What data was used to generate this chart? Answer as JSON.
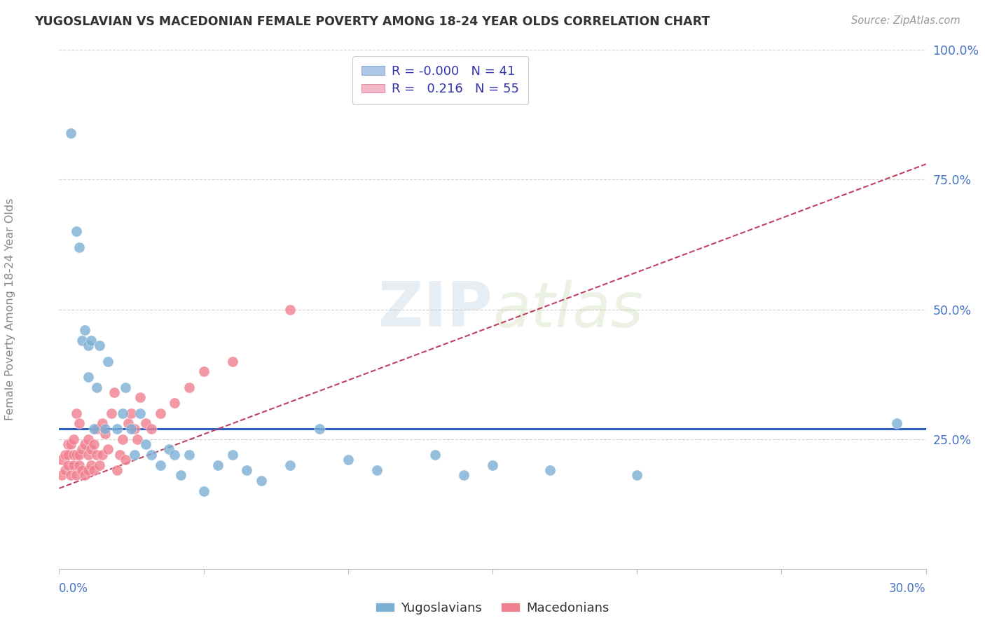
{
  "title": "YUGOSLAVIAN VS MACEDONIAN FEMALE POVERTY AMONG 18-24 YEAR OLDS CORRELATION CHART",
  "source": "Source: ZipAtlas.com",
  "ylabel": "Female Poverty Among 18-24 Year Olds",
  "legend_entries": [
    {
      "label_r": "-0.000",
      "label_n": "41",
      "facecolor": "#aec6e8",
      "edgecolor": "#8aafd0"
    },
    {
      "label_r": "0.216",
      "label_n": "55",
      "facecolor": "#f4b8c8",
      "edgecolor": "#e090a8"
    }
  ],
  "yugoslavian_color": "#7bafd4",
  "macedonian_color": "#f08090",
  "trend_yugo_color": "#3060c0",
  "trend_mace_color": "#c04060",
  "background_color": "#ffffff",
  "xlim": [
    0.0,
    0.3
  ],
  "ylim": [
    0.0,
    1.0
  ],
  "ytick_vals": [
    0.0,
    0.25,
    0.5,
    0.75,
    1.0
  ],
  "ytick_labels": [
    "",
    "25.0%",
    "50.0%",
    "75.0%",
    "100.0%"
  ],
  "yugo_x": [
    0.004,
    0.006,
    0.007,
    0.008,
    0.009,
    0.01,
    0.01,
    0.011,
    0.012,
    0.013,
    0.014,
    0.016,
    0.017,
    0.02,
    0.022,
    0.023,
    0.025,
    0.026,
    0.028,
    0.03,
    0.032,
    0.035,
    0.038,
    0.04,
    0.042,
    0.045,
    0.05,
    0.055,
    0.06,
    0.065,
    0.07,
    0.08,
    0.09,
    0.1,
    0.11,
    0.13,
    0.14,
    0.15,
    0.17,
    0.2,
    0.29
  ],
  "yugo_y": [
    0.84,
    0.65,
    0.62,
    0.44,
    0.46,
    0.43,
    0.37,
    0.44,
    0.27,
    0.35,
    0.43,
    0.27,
    0.4,
    0.27,
    0.3,
    0.35,
    0.27,
    0.22,
    0.3,
    0.24,
    0.22,
    0.2,
    0.23,
    0.22,
    0.18,
    0.22,
    0.15,
    0.2,
    0.22,
    0.19,
    0.17,
    0.2,
    0.27,
    0.21,
    0.19,
    0.22,
    0.18,
    0.2,
    0.19,
    0.18,
    0.28
  ],
  "mace_x": [
    0.001,
    0.001,
    0.002,
    0.002,
    0.003,
    0.003,
    0.003,
    0.004,
    0.004,
    0.005,
    0.005,
    0.005,
    0.006,
    0.006,
    0.006,
    0.007,
    0.007,
    0.007,
    0.008,
    0.008,
    0.009,
    0.009,
    0.01,
    0.01,
    0.01,
    0.011,
    0.011,
    0.012,
    0.012,
    0.013,
    0.013,
    0.014,
    0.015,
    0.015,
    0.016,
    0.017,
    0.018,
    0.019,
    0.02,
    0.021,
    0.022,
    0.023,
    0.024,
    0.025,
    0.026,
    0.027,
    0.028,
    0.03,
    0.032,
    0.035,
    0.04,
    0.045,
    0.05,
    0.06,
    0.08
  ],
  "mace_y": [
    0.18,
    0.21,
    0.19,
    0.22,
    0.2,
    0.22,
    0.24,
    0.18,
    0.24,
    0.2,
    0.22,
    0.25,
    0.18,
    0.22,
    0.3,
    0.2,
    0.22,
    0.28,
    0.19,
    0.23,
    0.18,
    0.24,
    0.22,
    0.19,
    0.25,
    0.2,
    0.23,
    0.19,
    0.24,
    0.22,
    0.27,
    0.2,
    0.22,
    0.28,
    0.26,
    0.23,
    0.3,
    0.34,
    0.19,
    0.22,
    0.25,
    0.21,
    0.28,
    0.3,
    0.27,
    0.25,
    0.33,
    0.28,
    0.27,
    0.3,
    0.32,
    0.35,
    0.38,
    0.4,
    0.5
  ],
  "mace_trend_x0": 0.0,
  "mace_trend_y0": 0.155,
  "mace_trend_x1": 0.3,
  "mace_trend_y1": 0.78,
  "yugo_trend_y": 0.27
}
